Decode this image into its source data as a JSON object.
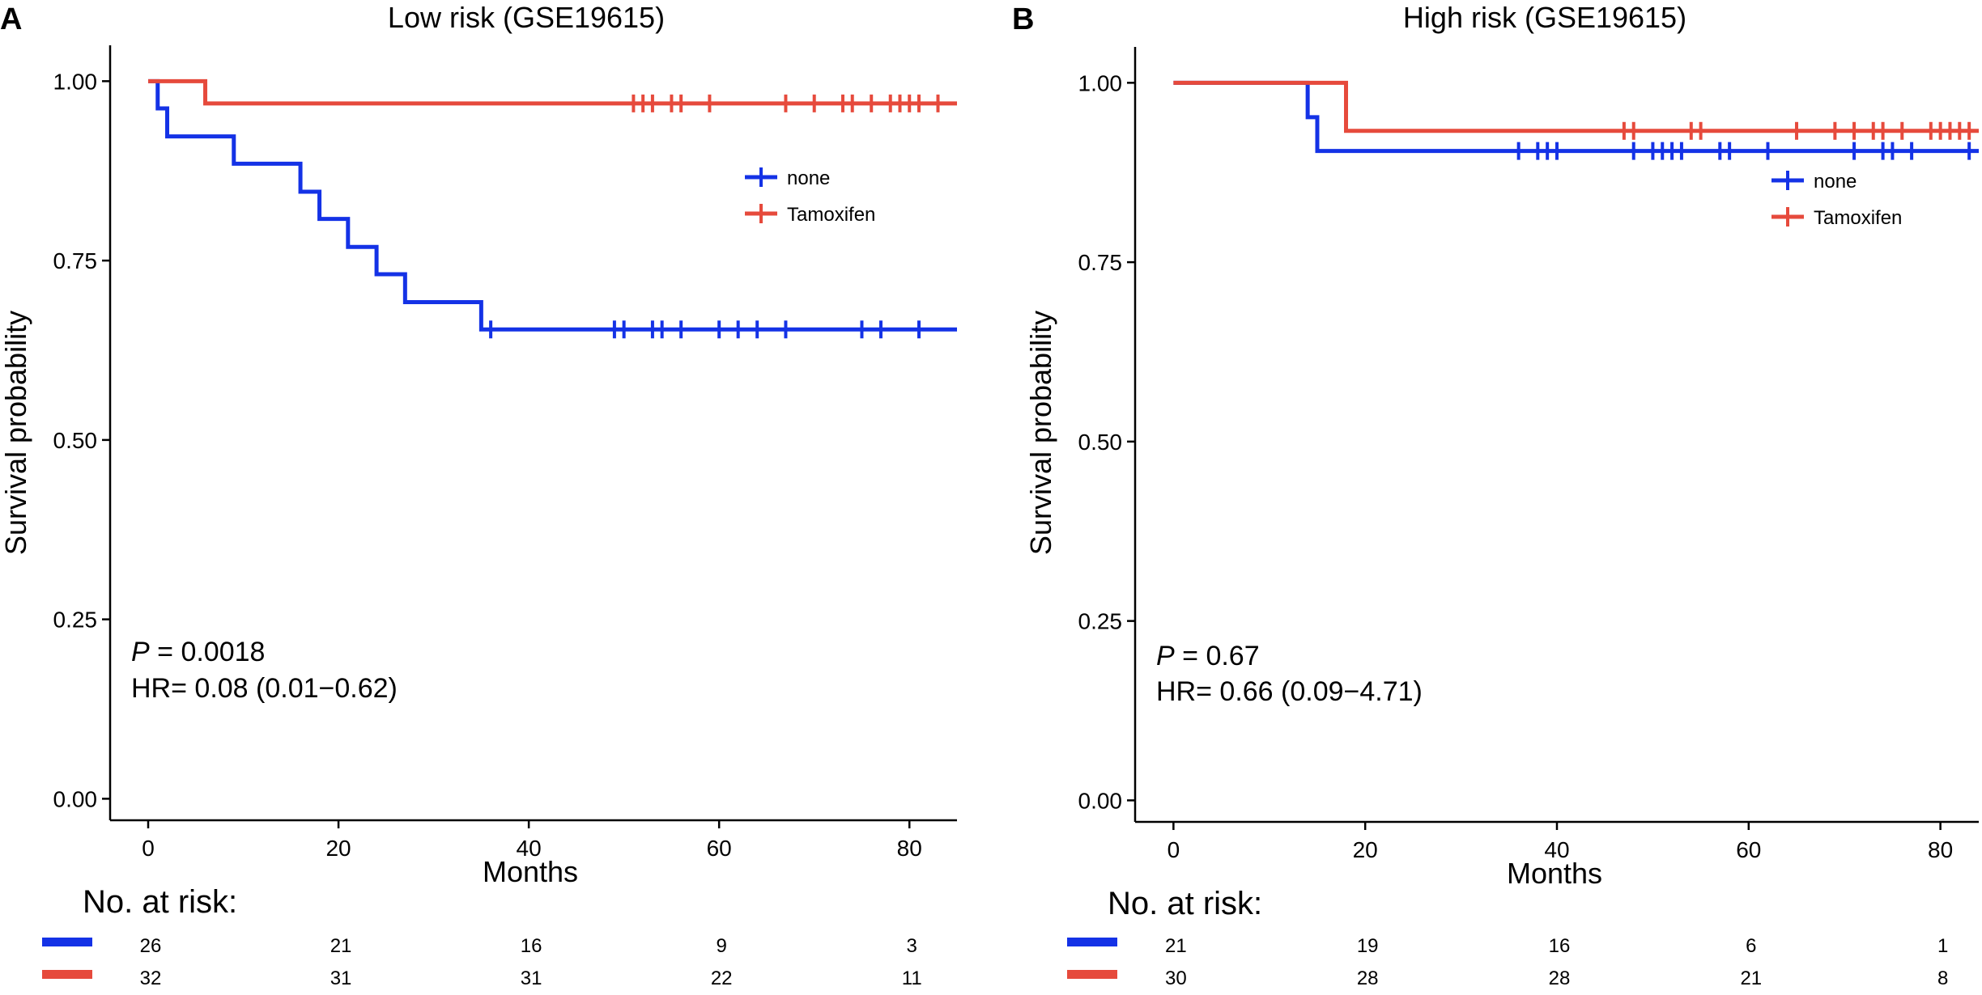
{
  "colors": {
    "none": "#1432e6",
    "tamoxifen": "#e64a3c",
    "axis": "#000000"
  },
  "chart_data": [
    {
      "type": "kaplan-meier",
      "panel_label": "A",
      "title": "Low risk (GSE19615)",
      "xlabel": "Months",
      "ylabel": "Survival probability",
      "xlim": [
        -4,
        85
      ],
      "ylim": [
        -0.03,
        1.05
      ],
      "xticks": [
        0,
        20,
        40,
        60,
        80
      ],
      "yticks": [
        0,
        0.25,
        0.5,
        0.75,
        1
      ],
      "ytick_labels": [
        "0.00",
        "0.25",
        "0.50",
        "0.75",
        "1.00"
      ],
      "grid": false,
      "legend_position": "right",
      "stats": {
        "p_label": "P",
        "p_value": "= 0.0018",
        "hr": "HR= 0.08 (0.01−0.62)"
      },
      "series": [
        {
          "name": "none",
          "color_key": "none",
          "steps": [
            [
              0,
              1
            ],
            [
              1,
              0.962
            ],
            [
              2,
              0.923
            ],
            [
              9,
              0.885
            ],
            [
              16,
              0.846
            ],
            [
              18,
              0.808
            ],
            [
              21,
              0.769
            ],
            [
              24,
              0.731
            ],
            [
              27,
              0.692
            ],
            [
              35,
              0.654
            ],
            [
              85,
              0.654
            ]
          ],
          "censor_times": [
            36,
            49,
            50,
            53,
            54,
            56,
            60,
            62,
            64,
            67,
            75,
            77,
            81
          ]
        },
        {
          "name": "Tamoxifen",
          "color_key": "tamoxifen",
          "steps": [
            [
              0,
              1
            ],
            [
              6,
              0.969
            ],
            [
              85,
              0.969
            ]
          ],
          "censor_times": [
            51,
            52,
            53,
            55,
            56,
            59,
            67,
            70,
            73,
            74,
            76,
            78,
            79,
            80,
            81,
            83
          ]
        }
      ],
      "risk_table": {
        "title": "No. at risk:",
        "times": [
          0,
          20,
          40,
          60,
          80
        ],
        "rows": [
          {
            "name": "none",
            "color_key": "none",
            "counts": [
              "26",
              "21",
              "16",
              "9",
              "3"
            ]
          },
          {
            "name": "Tamoxifen",
            "color_key": "tamoxifen",
            "counts": [
              "32",
              "31",
              "31",
              "22",
              "11"
            ]
          }
        ]
      }
    },
    {
      "type": "kaplan-meier",
      "panel_label": "B",
      "title": "High risk (GSE19615)",
      "xlabel": "Months",
      "ylabel": "Survival probability",
      "xlim": [
        -4,
        84
      ],
      "ylim": [
        -0.03,
        1.05
      ],
      "xticks": [
        0,
        20,
        40,
        60,
        80
      ],
      "yticks": [
        0,
        0.25,
        0.5,
        0.75,
        1
      ],
      "ytick_labels": [
        "0.00",
        "0.25",
        "0.50",
        "0.75",
        "1.00"
      ],
      "grid": false,
      "legend_position": "right",
      "stats": {
        "p_label": "P",
        "p_value": "= 0.67",
        "hr": "HR= 0.66 (0.09−4.71)"
      },
      "series": [
        {
          "name": "none",
          "color_key": "none",
          "steps": [
            [
              0,
              1
            ],
            [
              14,
              0.952
            ],
            [
              15,
              0.905
            ],
            [
              84,
              0.905
            ]
          ],
          "censor_times": [
            36,
            38,
            39,
            40,
            48,
            50,
            51,
            52,
            53,
            57,
            58,
            62,
            71,
            74,
            75,
            77,
            83
          ]
        },
        {
          "name": "Tamoxifen",
          "color_key": "tamoxifen",
          "steps": [
            [
              0,
              1
            ],
            [
              18,
              0.933
            ],
            [
              84,
              0.933
            ]
          ],
          "censor_times": [
            47,
            48,
            54,
            55,
            65,
            69,
            71,
            73,
            74,
            76,
            79,
            80,
            81,
            82,
            83
          ]
        }
      ],
      "risk_table": {
        "title": "No. at risk:",
        "times": [
          0,
          20,
          40,
          60,
          80
        ],
        "rows": [
          {
            "name": "none",
            "color_key": "none",
            "counts": [
              "21",
              "19",
              "16",
              "6",
              "1"
            ]
          },
          {
            "name": "Tamoxifen",
            "color_key": "tamoxifen",
            "counts": [
              "30",
              "28",
              "28",
              "21",
              "8"
            ]
          }
        ]
      }
    }
  ]
}
